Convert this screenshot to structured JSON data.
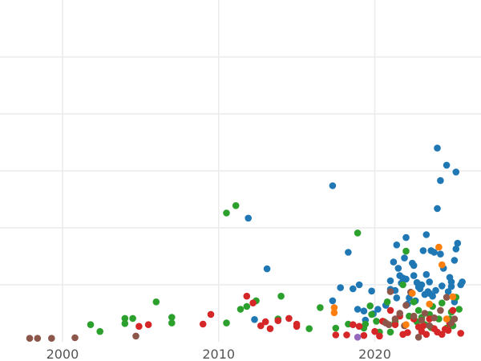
{
  "chart_data": {
    "type": "scatter",
    "title": "",
    "xlabel": "",
    "ylabel": "",
    "xlim": [
      1996.0,
      2026.8
    ],
    "ylim": [
      0,
      6
    ],
    "x_ticks": [
      2000,
      2010,
      2020
    ],
    "x_tick_labels": [
      "2000",
      "2010",
      "2020"
    ],
    "y_gridlines": [
      1,
      2,
      3,
      4,
      5
    ],
    "grid": true,
    "legend": "none",
    "series": [
      {
        "color": "#1f77b4",
        "points": [
          [
            2011.9,
            2.17
          ],
          [
            2012.3,
            0.39
          ],
          [
            2013.1,
            1.28
          ],
          [
            2017.3,
            2.74
          ],
          [
            2017.3,
            0.72
          ],
          [
            2017.8,
            0.95
          ],
          [
            2018.3,
            1.57
          ],
          [
            2018.6,
            0.93
          ],
          [
            2018.9,
            0.57
          ],
          [
            2019.0,
            1.0
          ],
          [
            2019.3,
            0.54
          ],
          [
            2019.4,
            0.38
          ],
          [
            2019.8,
            0.89
          ],
          [
            2019.9,
            0.49
          ],
          [
            2020.7,
            0.64
          ],
          [
            2021.0,
            1.07
          ],
          [
            2021.0,
            0.92
          ],
          [
            2021.2,
            1.4
          ],
          [
            2021.3,
            0.9
          ],
          [
            2021.4,
            1.7
          ],
          [
            2021.5,
            1.29
          ],
          [
            2021.6,
            1.16
          ],
          [
            2021.8,
            1.12
          ],
          [
            2021.9,
            1.47
          ],
          [
            2022.0,
            1.83
          ],
          [
            2022.0,
            1.1
          ],
          [
            2022.2,
            0.77
          ],
          [
            2022.4,
            1.38
          ],
          [
            2022.5,
            1.34
          ],
          [
            2022.5,
            1.16
          ],
          [
            2022.7,
            1.04
          ],
          [
            2022.9,
            1.0
          ],
          [
            2023.1,
            1.6
          ],
          [
            2023.3,
            1.18
          ],
          [
            2023.3,
            1.88
          ],
          [
            2023.5,
            1.05
          ],
          [
            2023.5,
            0.85
          ],
          [
            2023.6,
            1.6
          ],
          [
            2023.8,
            1.57
          ],
          [
            2023.9,
            0.9
          ],
          [
            2024.0,
            2.34
          ],
          [
            2024.0,
            3.4
          ],
          [
            2024.2,
            2.83
          ],
          [
            2024.2,
            1.54
          ],
          [
            2024.4,
            1.29
          ],
          [
            2024.6,
            3.1
          ],
          [
            2024.8,
            1.13
          ],
          [
            2024.9,
            0.97
          ],
          [
            2025.1,
            0.7
          ],
          [
            2025.1,
            1.43
          ],
          [
            2025.2,
            1.63
          ],
          [
            2025.2,
            2.98
          ],
          [
            2025.3,
            1.73
          ],
          [
            2025.5,
            1.0
          ],
          [
            2025.6,
            1.05
          ],
          [
            2020.2,
            0.57
          ],
          [
            2021.4,
            0.77
          ],
          [
            2022.9,
            0.93
          ],
          [
            2023.0,
            1.0
          ],
          [
            2023.2,
            0.83
          ],
          [
            2023.7,
            0.8
          ],
          [
            2024.3,
            0.98
          ],
          [
            2024.7,
            0.88
          ],
          [
            2022.1,
            0.66
          ],
          [
            2022.6,
            0.72
          ],
          [
            2023.4,
            0.88
          ],
          [
            2024.9,
            1.05
          ],
          [
            2021.7,
            1.03
          ],
          [
            2022.8,
            0.96
          ]
        ]
      },
      {
        "color": "#2ca02c",
        "points": [
          [
            2001.8,
            0.3
          ],
          [
            2002.4,
            0.18
          ],
          [
            2004.0,
            0.41
          ],
          [
            2004.0,
            0.32
          ],
          [
            2004.5,
            0.41
          ],
          [
            2006.0,
            0.7
          ],
          [
            2007.0,
            0.43
          ],
          [
            2007.0,
            0.33
          ],
          [
            2010.5,
            2.26
          ],
          [
            2010.5,
            0.33
          ],
          [
            2011.1,
            2.39
          ],
          [
            2011.4,
            0.57
          ],
          [
            2011.8,
            0.62
          ],
          [
            2012.4,
            0.72
          ],
          [
            2013.8,
            0.4
          ],
          [
            2014.0,
            0.8
          ],
          [
            2015.8,
            0.23
          ],
          [
            2016.5,
            0.6
          ],
          [
            2017.5,
            0.24
          ],
          [
            2018.3,
            0.31
          ],
          [
            2018.9,
            1.91
          ],
          [
            2019.3,
            0.24
          ],
          [
            2019.4,
            0.31
          ],
          [
            2019.7,
            0.63
          ],
          [
            2020.1,
            0.36
          ],
          [
            2020.3,
            0.17
          ],
          [
            2020.8,
            0.7
          ],
          [
            2021.0,
            0.17
          ],
          [
            2021.8,
            1.0
          ],
          [
            2022.0,
            1.59
          ],
          [
            2022.2,
            0.45
          ],
          [
            2022.5,
            0.7
          ],
          [
            2022.8,
            0.55
          ],
          [
            2023.0,
            0.43
          ],
          [
            2023.2,
            0.3
          ],
          [
            2023.5,
            0.48
          ],
          [
            2023.7,
            0.62
          ],
          [
            2024.1,
            0.4
          ],
          [
            2024.3,
            0.68
          ],
          [
            2024.6,
            0.24
          ],
          [
            2024.8,
            0.4
          ],
          [
            2025.0,
            0.28
          ],
          [
            2025.2,
            0.78
          ],
          [
            2025.4,
            0.57
          ],
          [
            2019.8,
            0.48
          ],
          [
            2021.3,
            0.35
          ],
          [
            2022.7,
            0.35
          ],
          [
            2023.6,
            0.25
          ],
          [
            2024.9,
            0.52
          ],
          [
            2020.6,
            0.35
          ]
        ]
      },
      {
        "color": "#d62728",
        "points": [
          [
            2004.9,
            0.27
          ],
          [
            2005.5,
            0.3
          ],
          [
            2009.0,
            0.31
          ],
          [
            2009.5,
            0.48
          ],
          [
            2011.8,
            0.8
          ],
          [
            2012.2,
            0.68
          ],
          [
            2012.7,
            0.28
          ],
          [
            2013.0,
            0.35
          ],
          [
            2013.3,
            0.23
          ],
          [
            2013.8,
            0.37
          ],
          [
            2014.5,
            0.41
          ],
          [
            2015.0,
            0.31
          ],
          [
            2015.0,
            0.27
          ],
          [
            2017.5,
            0.12
          ],
          [
            2018.2,
            0.12
          ],
          [
            2018.6,
            0.3
          ],
          [
            2019.0,
            0.27
          ],
          [
            2019.3,
            0.11
          ],
          [
            2020.0,
            0.18
          ],
          [
            2020.3,
            0.1
          ],
          [
            2020.5,
            0.36
          ],
          [
            2021.0,
            0.55
          ],
          [
            2021.3,
            0.3
          ],
          [
            2021.8,
            0.13
          ],
          [
            2022.1,
            0.16
          ],
          [
            2022.5,
            0.4
          ],
          [
            2022.8,
            0.26
          ],
          [
            2023.0,
            0.18
          ],
          [
            2023.3,
            0.13
          ],
          [
            2023.5,
            0.4
          ],
          [
            2023.8,
            0.23
          ],
          [
            2024.0,
            0.17
          ],
          [
            2024.3,
            0.13
          ],
          [
            2024.5,
            0.22
          ],
          [
            2024.8,
            0.32
          ],
          [
            2025.0,
            0.55
          ],
          [
            2025.5,
            0.15
          ],
          [
            2023.1,
            0.28
          ],
          [
            2024.7,
            0.2
          ],
          [
            2021.6,
            0.45
          ]
        ]
      },
      {
        "color": "#8c564b",
        "points": [
          [
            1997.9,
            0.06
          ],
          [
            1998.4,
            0.06
          ],
          [
            1999.3,
            0.06
          ],
          [
            2000.8,
            0.07
          ],
          [
            2004.7,
            0.1
          ],
          [
            2020.7,
            0.33
          ],
          [
            2021.0,
            0.88
          ],
          [
            2021.3,
            0.4
          ],
          [
            2021.6,
            0.5
          ],
          [
            2022.0,
            0.64
          ],
          [
            2022.3,
            0.87
          ],
          [
            2022.5,
            0.45
          ],
          [
            2022.8,
            0.08
          ],
          [
            2023.0,
            0.38
          ],
          [
            2023.2,
            0.5
          ],
          [
            2023.5,
            0.28
          ],
          [
            2024.2,
            0.55
          ],
          [
            2024.6,
            0.78
          ],
          [
            2024.9,
            0.33
          ],
          [
            2025.1,
            0.4
          ],
          [
            2021.9,
            0.28
          ],
          [
            2023.8,
            0.42
          ],
          [
            2020.9,
            0.3
          ]
        ]
      },
      {
        "color": "#ff7f0e",
        "points": [
          [
            2017.4,
            0.6
          ],
          [
            2017.4,
            0.51
          ],
          [
            2022.4,
            0.85
          ],
          [
            2023.5,
            0.66
          ],
          [
            2024.1,
            1.66
          ],
          [
            2024.3,
            1.35
          ],
          [
            2024.6,
            0.4
          ],
          [
            2025.0,
            0.79
          ],
          [
            2022.0,
            0.3
          ]
        ]
      },
      {
        "color": "#9467bd",
        "points": [
          [
            2018.9,
            0.08
          ]
        ]
      }
    ]
  }
}
